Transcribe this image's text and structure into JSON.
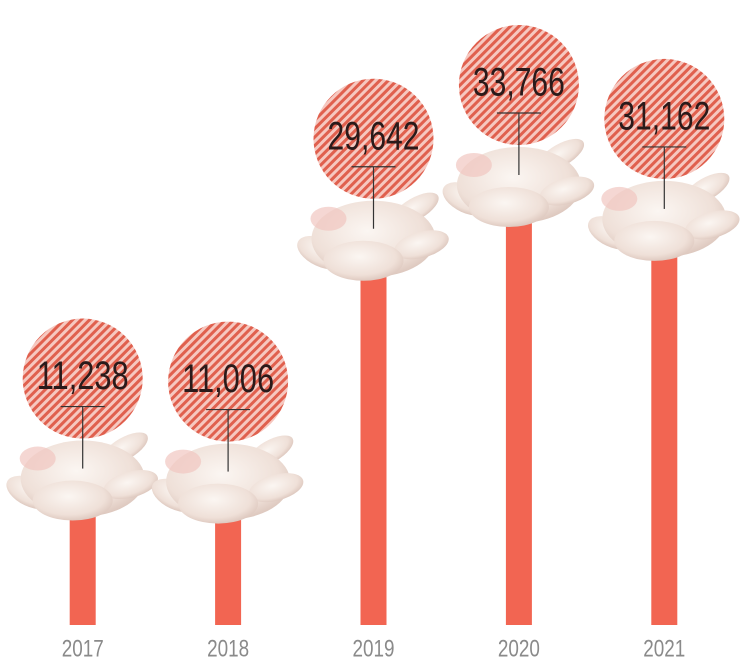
{
  "chart_data": {
    "type": "bar",
    "categories": [
      "2017",
      "2018",
      "2019",
      "2020",
      "2021"
    ],
    "values": [
      11238,
      11006,
      29642,
      33766,
      31162
    ],
    "value_labels": [
      "11,238",
      "11,006",
      "29,642",
      "33,766",
      "31,162"
    ],
    "color": "#f26552"
  }
}
